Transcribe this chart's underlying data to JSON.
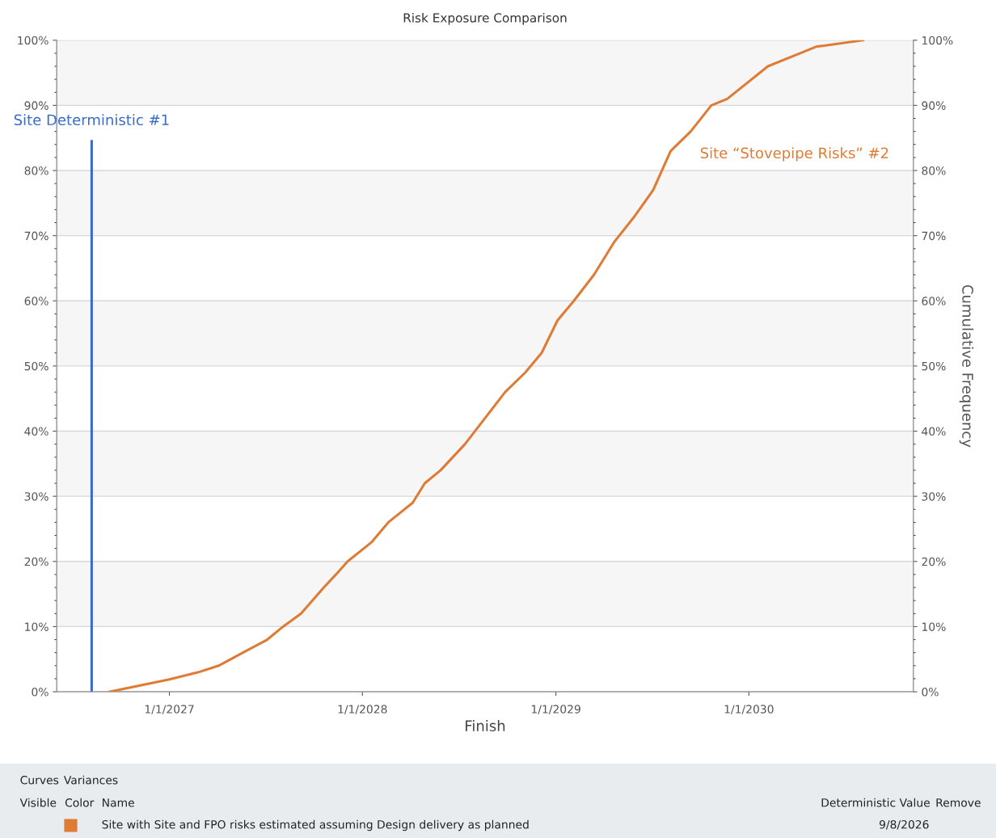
{
  "chart_data": {
    "type": "line",
    "title": "Risk Exposure Comparison",
    "xlabel": "Finish",
    "y2label": "Cumulative Frequency",
    "x": [
      "2026-09-10",
      "2027-01-01",
      "2027-02-25",
      "2027-04-04",
      "2027-05-20",
      "2027-07-05",
      "2027-08-04",
      "2027-09-07",
      "2027-10-20",
      "2027-11-12",
      "2027-12-04",
      "2028-01-19",
      "2028-02-19",
      "2028-04-05",
      "2028-04-28",
      "2028-05-28",
      "2028-07-13",
      "2028-08-20",
      "2028-09-27",
      "2028-11-04",
      "2028-12-05",
      "2029-01-04",
      "2029-02-04",
      "2029-03-14",
      "2029-04-21",
      "2029-05-30",
      "2029-07-04",
      "2029-08-06",
      "2029-09-13",
      "2029-10-22",
      "2029-11-21",
      "2030-02-06",
      "2030-04-08",
      "2030-05-08",
      "2030-08-05"
    ],
    "series": [
      {
        "name": "Site “Stovepipe Risks” #2",
        "color": "#de7b35",
        "values": [
          0,
          1.9,
          3,
          4,
          6,
          8,
          10,
          12,
          16,
          18,
          20,
          23,
          26,
          29,
          32,
          34,
          38,
          42,
          46,
          49,
          52,
          57,
          60,
          64,
          69,
          73,
          77,
          83,
          86,
          90,
          91,
          96,
          98,
          99,
          100
        ]
      }
    ],
    "xlim": [
      "2026-06-02",
      "2030-11-08"
    ],
    "xticks": [
      {
        "value": "2027-01-01",
        "label": "1/1/2027"
      },
      {
        "value": "2028-01-01",
        "label": "1/1/2028"
      },
      {
        "value": "2029-01-01",
        "label": "1/1/2029"
      },
      {
        "value": "2030-01-01",
        "label": "1/1/2030"
      }
    ],
    "ylim": [
      0,
      100
    ],
    "yticks": [
      {
        "value": 0,
        "label": "0%"
      },
      {
        "value": 10,
        "label": "10%"
      },
      {
        "value": 20,
        "label": "20%"
      },
      {
        "value": 30,
        "label": "30%"
      },
      {
        "value": 40,
        "label": "40%"
      },
      {
        "value": 50,
        "label": "50%"
      },
      {
        "value": 60,
        "label": "60%"
      },
      {
        "value": 70,
        "label": "70%"
      },
      {
        "value": 80,
        "label": "80%"
      },
      {
        "value": 90,
        "label": "90%"
      },
      {
        "value": 100,
        "label": "100%"
      }
    ],
    "y2lim": [
      0,
      100
    ],
    "y2ticks": [
      {
        "value": 0,
        "label": "0%"
      },
      {
        "value": 10,
        "label": "10%"
      },
      {
        "value": 20,
        "label": "20%"
      },
      {
        "value": 30,
        "label": "30%"
      },
      {
        "value": 40,
        "label": "40%"
      },
      {
        "value": 50,
        "label": "50%"
      },
      {
        "value": 60,
        "label": "60%"
      },
      {
        "value": 70,
        "label": "70%"
      },
      {
        "value": 80,
        "label": "80%"
      },
      {
        "value": 90,
        "label": "90%"
      },
      {
        "value": 100,
        "label": "100%"
      }
    ],
    "ref_lines": [
      {
        "axis": "x",
        "value": "2026-08-07",
        "label": "Site Deterministic #1",
        "color": "#3a6bc9"
      }
    ],
    "bands": [
      {
        "axis": "y",
        "from": 10,
        "to": 20,
        "color": "#f6f6f6"
      },
      {
        "axis": "y",
        "from": 30,
        "to": 40,
        "color": "#f6f6f6"
      },
      {
        "axis": "y",
        "from": 50,
        "to": 60,
        "color": "#f6f6f6"
      },
      {
        "axis": "y",
        "from": 70,
        "to": 80,
        "color": "#f6f6f6"
      },
      {
        "axis": "y",
        "from": 90,
        "to": 100,
        "color": "#f6f6f6"
      }
    ],
    "grid": "y",
    "legend": false,
    "marker": "none",
    "line_style": "solid",
    "annotations": [
      "Curves",
      "Variances",
      "Visible",
      "Color",
      "Name",
      "Deterministic Value",
      "Remove",
      "Site with Site and FPO risks estimated assuming Design delivery as planned",
      "9/8/2026"
    ]
  }
}
